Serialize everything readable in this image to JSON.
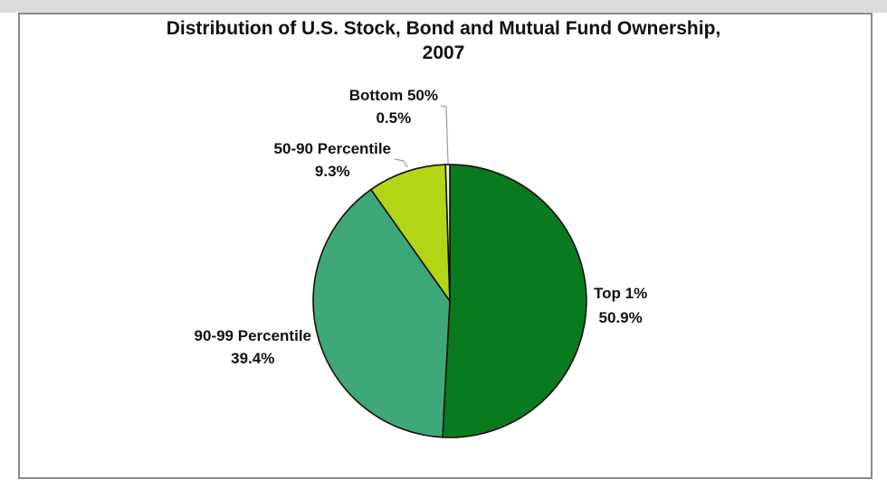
{
  "chart_data": {
    "type": "pie",
    "title_lines": [
      "Distribution of U.S. Stock, Bond and Mutual Fund Ownership,",
      "2007"
    ],
    "slices": [
      {
        "name": "Top 1%",
        "value": 50.9,
        "label": "50.9%",
        "color": "#0a7a1e"
      },
      {
        "name": "90-99 Percentile",
        "value": 39.4,
        "label": "39.4%",
        "color": "#3fa878"
      },
      {
        "name": "50-90 Percentile",
        "value": 9.3,
        "label": "9.3%",
        "color": "#b2d616"
      },
      {
        "name": "Bottom 50%",
        "value": 0.5,
        "label": "0.5%",
        "color": "#f3f6e4"
      }
    ],
    "start_angle": "12 o'clock",
    "direction": "clockwise",
    "legend": "none (direct labels)"
  }
}
